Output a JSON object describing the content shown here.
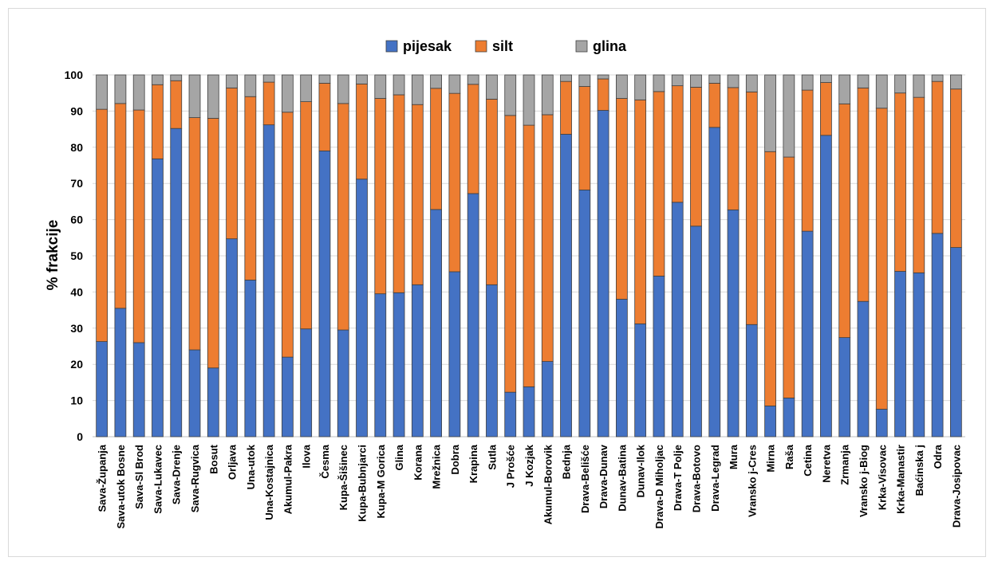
{
  "chart_data": {
    "type": "bar",
    "stacked": true,
    "title": "",
    "xlabel": "",
    "ylabel": "% frakcije",
    "ylim": [
      0,
      100
    ],
    "yticks": [
      0,
      10,
      20,
      30,
      40,
      50,
      60,
      70,
      80,
      90,
      100
    ],
    "grid": true,
    "legend_position": "top",
    "categories": [
      "Sava-Županja",
      "Sava-utok Bosne",
      "Sava-Sl Brod",
      "Sava-Lukavec",
      "Sava-Drenje",
      "Sava-Rugvica",
      "Bosut",
      "Orljava",
      "Una-utok",
      "Una-Kostajnica",
      "Akumul-Pakra",
      "Ilova",
      "Česma",
      "Kupa-Šišinec",
      "Kupa-Bubnjarci",
      "Kupa-M Gorica",
      "Glina",
      "Korana",
      "Mrežnica",
      "Dobra",
      "Krapina",
      "Sutla",
      "J Prošće",
      "J Kozjak",
      "Akumul-Borovik",
      "Bednja",
      "Drava-Belišće",
      "Drava-Dunav",
      "Dunav-Batina",
      "Dunav-Ilok",
      "Drava-D Miholjac",
      "Drava-T Polje",
      "Drava-Botovo",
      "Drava-Legrad",
      "Mura",
      "Vransko j-Cres",
      "Mirna",
      "Raša",
      "Cetina",
      "Neretva",
      "Zrmanja",
      "Vransko j-Biog",
      "Krka-Visovac",
      "Krka-Manastir",
      "Baćinska j",
      "Odra",
      "Drava-Josipovac"
    ],
    "series": [
      {
        "name": "pijesak",
        "color": "#4472c4",
        "values": [
          26.3,
          35.5,
          26,
          76.8,
          85.2,
          24,
          19,
          54.7,
          43.3,
          86.2,
          22,
          29.8,
          79,
          29.5,
          71.2,
          39.5,
          39.8,
          42,
          62.8,
          45.6,
          67.2,
          42,
          12.3,
          13.8,
          20.8,
          83.6,
          68.2,
          90.2,
          38,
          31.2,
          44.4,
          64.8,
          58.2,
          85.5,
          62.7,
          31,
          8.5,
          10.7,
          56.8,
          83.3,
          27.4,
          37.4,
          7.6,
          45.7,
          45.3,
          56.2,
          52.3
        ]
      },
      {
        "name": "silt",
        "color": "#ed7d31",
        "values": [
          64.2,
          56.6,
          64.3,
          20.5,
          13.2,
          64.2,
          69,
          41.7,
          50.7,
          11.8,
          67.7,
          62.8,
          18.7,
          62.6,
          26.3,
          54,
          54.7,
          49.8,
          33.5,
          49.3,
          30.2,
          51.3,
          76.5,
          72.3,
          68.2,
          14.6,
          28.6,
          8.7,
          55.5,
          61.9,
          51,
          32.2,
          38.4,
          12.2,
          33.8,
          64.3,
          70.3,
          66.6,
          39,
          14.6,
          64.6,
          59,
          83.2,
          49.3,
          48.5,
          42,
          43.8
        ]
      },
      {
        "name": "glina",
        "color": "#a5a5a5",
        "values": [
          9.5,
          7.9,
          9.7,
          2.7,
          1.6,
          11.8,
          12,
          3.6,
          6,
          2,
          10.3,
          7.4,
          2.3,
          7.9,
          2.5,
          6.5,
          5.5,
          8.2,
          3.7,
          5.1,
          2.6,
          6.7,
          11.2,
          13.9,
          11,
          1.8,
          3.2,
          1.1,
          6.5,
          6.9,
          4.6,
          3,
          3.4,
          2.3,
          3.5,
          4.7,
          21.2,
          22.7,
          4.2,
          2.1,
          8,
          3.6,
          9.2,
          5,
          6.2,
          1.8,
          3.9
        ]
      }
    ]
  }
}
